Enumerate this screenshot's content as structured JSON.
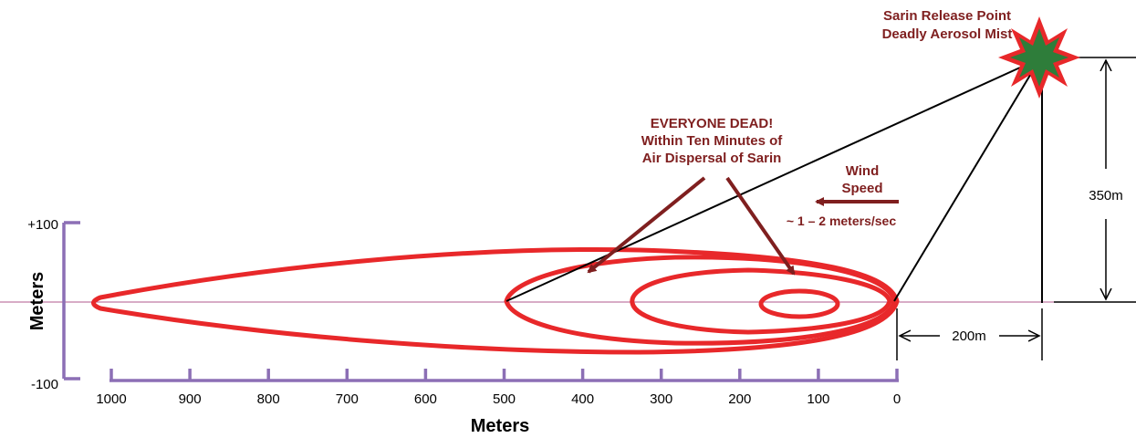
{
  "release": {
    "line1": "Sarin Release Point",
    "line2": "Deadly Aerosol Mist"
  },
  "casualty": {
    "line1": "EVERYONE DEAD!",
    "line2": "Within Ten Minutes of",
    "line3": "Air Dispersal of Sarin"
  },
  "wind": {
    "line1": "Wind",
    "line2": "Speed",
    "line3": "~ 1 – 2 meters/sec"
  },
  "height_label": "350m",
  "offset_label": "200m",
  "x_axis": {
    "title": "Meters",
    "ticks": [
      "1000",
      "900",
      "800",
      "700",
      "600",
      "500",
      "400",
      "300",
      "200",
      "100",
      "0"
    ]
  },
  "y_axis": {
    "title": "Meters",
    "top_label": "+100",
    "bottom_label": "-100"
  },
  "colors": {
    "plume": "#e8282a",
    "annotation": "#7f1f1f",
    "axis": "#8c6fb5",
    "centerline": "#b05a8c",
    "burst_outer": "#e8282a",
    "burst_inner": "#2e7d3a"
  }
}
